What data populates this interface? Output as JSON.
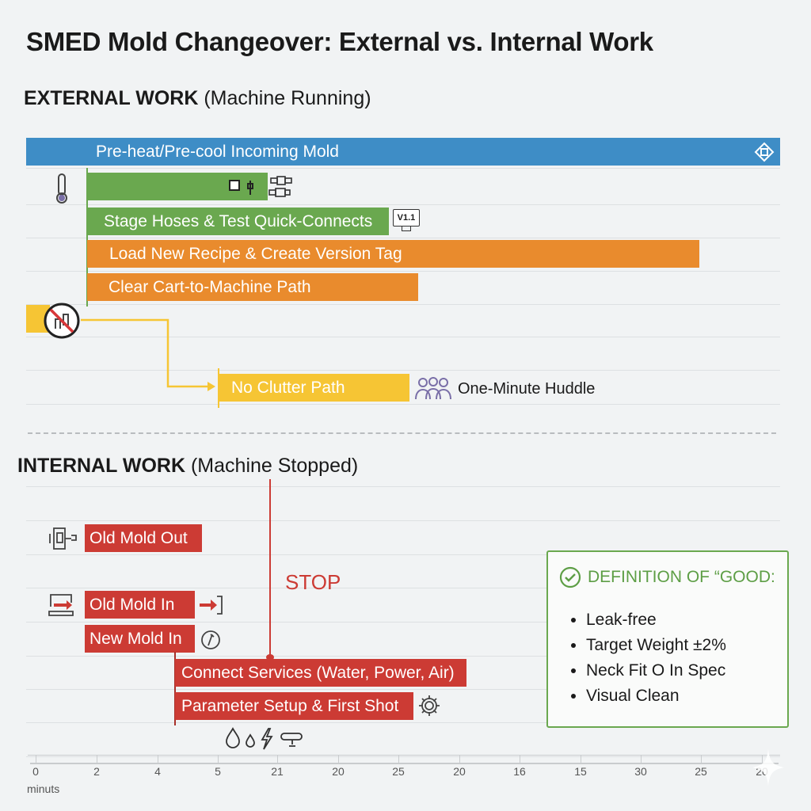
{
  "title": "SMED Mold Changeover: External vs. Internal Work",
  "external": {
    "heading": "EXTERNAL WORK",
    "subheading": "(Machine Running)",
    "tasks": [
      {
        "label": "Pre-heat/Pre-cool Incoming Mold",
        "color": "#3e8dc6"
      },
      {
        "label": "",
        "color": "#6aa84f"
      },
      {
        "label": "Stage Hoses & Test Quick-Connects",
        "color": "#6aa84f"
      },
      {
        "label": "Load New Recipe & Create Version Tag",
        "color": "#e98b2d"
      },
      {
        "label": "Clear Cart-to-Machine Path",
        "color": "#e98b2d"
      },
      {
        "label": "No Clutter Path",
        "color": "#f6c534"
      }
    ],
    "version_badge": "V1.1",
    "huddle_label": "One-Minute Huddle"
  },
  "internal": {
    "heading": "INTERNAL WORK",
    "subheading": "(Machine Stopped)",
    "stop_label": "STOP",
    "tasks": [
      {
        "label": "Old Mold Out",
        "color": "#cc3b34"
      },
      {
        "label": "Old Mold In",
        "color": "#cc3b34"
      },
      {
        "label": "New Mold In",
        "color": "#cc3b34"
      },
      {
        "label": "Connect Services (Water, Power, Air)",
        "color": "#cc3b34"
      },
      {
        "label": "Parameter Setup & First Shot",
        "color": "#cc3b34"
      }
    ]
  },
  "definition": {
    "heading": "DEFINITION OF “GOOD:",
    "items": [
      "Leak-free",
      "Target Weight ±2%",
      "Neck Fit O In Spec",
      "Visual Clean"
    ],
    "color": "#6aa84f"
  },
  "axis": {
    "ticks": [
      "0",
      "2",
      "4",
      "5",
      "21",
      "20",
      "25",
      "20",
      "16",
      "15",
      "30",
      "25",
      "20"
    ],
    "unit_label": "minuts"
  }
}
